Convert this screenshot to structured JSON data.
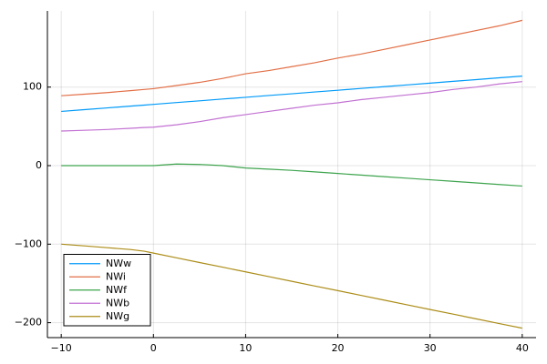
{
  "chart_data": {
    "type": "line",
    "x": [
      -10,
      -7.5,
      -5,
      -2.5,
      -1,
      0,
      2.5,
      5,
      7.5,
      10,
      12.5,
      15,
      17.5,
      20,
      22.5,
      25,
      27.5,
      30,
      32.5,
      35,
      37.5,
      40
    ],
    "series": [
      {
        "name": "NWw",
        "color": "#009af9",
        "values": [
          69,
          71.3,
          73.5,
          75.8,
          77.1,
          78,
          80.3,
          82.5,
          84.8,
          87,
          89.3,
          91.5,
          93.8,
          96,
          98.3,
          100.5,
          102.8,
          105,
          107.3,
          109.5,
          111.8,
          114
        ]
      },
      {
        "name": "NWi",
        "color": "#e26f46",
        "values": [
          89,
          91,
          93,
          95.5,
          97,
          98,
          102,
          106,
          111,
          117,
          121,
          126,
          131,
          137,
          142,
          148,
          154,
          160,
          166,
          172,
          178,
          185
        ]
      },
      {
        "name": "NWf",
        "color": "#3da44d",
        "values": [
          0,
          0,
          0,
          0,
          0,
          0,
          2,
          1.5,
          0,
          -3,
          -4.5,
          -6,
          -8,
          -10,
          -12,
          -14,
          -16,
          -18,
          -20,
          -22,
          -24,
          -26
        ]
      },
      {
        "name": "NWb",
        "color": "#c271d2",
        "values": [
          44,
          45,
          46,
          47.5,
          48.5,
          49,
          52,
          56,
          61,
          65,
          69,
          73,
          77,
          80,
          84,
          87,
          90,
          93,
          97,
          100,
          104,
          107
        ]
      },
      {
        "name": "NWg",
        "color": "#ac8d18",
        "values": [
          -100,
          -102.2,
          -104.5,
          -106.8,
          -109,
          -111.4,
          -117.4,
          -123.4,
          -129.3,
          -135.3,
          -141.3,
          -147.3,
          -153.3,
          -159.2,
          -165.2,
          -171.2,
          -177.2,
          -183.2,
          -189.1,
          -195.1,
          -201.1,
          -207
        ]
      }
    ],
    "xlim": [
      -11.5,
      41.5
    ],
    "xticks": [
      {
        "value": -10,
        "label": "−10"
      },
      0,
      10,
      20,
      30,
      40
    ],
    "ylim": [
      -219,
      197
    ],
    "yticks": [
      {
        "value": -200,
        "label": "−200"
      },
      {
        "value": -100,
        "label": "−100"
      },
      0,
      100
    ],
    "grid": true,
    "legend": "bottom-left"
  }
}
